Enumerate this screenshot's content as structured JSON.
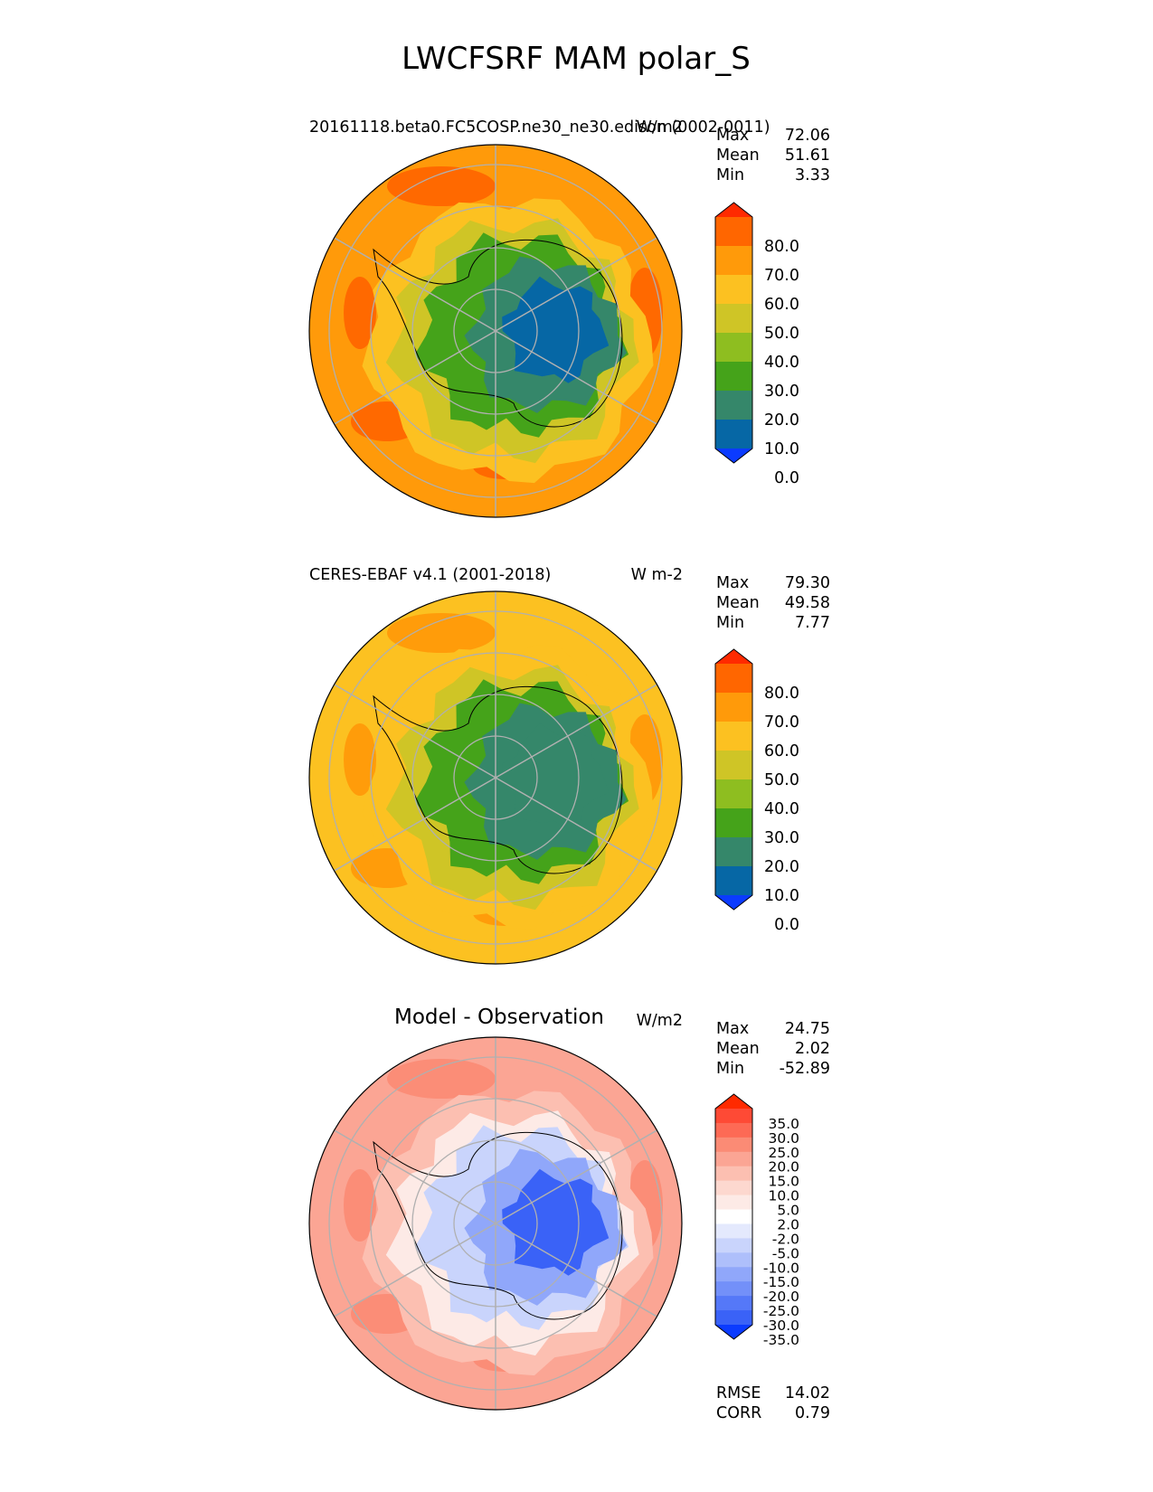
{
  "chart_data": {
    "type": "heatmap",
    "title": "LWCFSRF MAM polar_S",
    "projection": "south polar stereographic",
    "grid": true,
    "panels": [
      {
        "left_title": "20161118.beta0.FC5COSP.ne30_ne30.edison (0002-0011)",
        "right_title": "W/m2",
        "stats": [
          {
            "label": "Max",
            "value": "72.06"
          },
          {
            "label": "Mean",
            "value": "51.61"
          },
          {
            "label": "Min",
            "value": "3.33"
          }
        ],
        "colorbar": {
          "levels": [
            "80.0",
            "70.0",
            "60.0",
            "50.0",
            "40.0",
            "30.0",
            "20.0",
            "10.0",
            "0.0"
          ],
          "colors": [
            "#ff2a00",
            "#ff6600",
            "#ff9a0a",
            "#fcc121",
            "#cfc526",
            "#8ebe20",
            "#45a31a",
            "#35876a",
            "#0667a5",
            "#0b3bff"
          ]
        },
        "field": {
          "ocean": "#ff9a0a",
          "ice_ring": "#fcc121",
          "coastal_band": "#cfc526",
          "interior": "#45a31a",
          "plateau": "#35876a",
          "core": "#0667a5",
          "highs": "#ff6600"
        }
      },
      {
        "left_title": "CERES-EBAF v4.1 (2001-2018)",
        "right_title": "W m-2",
        "stats": [
          {
            "label": "Max",
            "value": "79.30"
          },
          {
            "label": "Mean",
            "value": "49.58"
          },
          {
            "label": "Min",
            "value": "7.77"
          }
        ],
        "colorbar": {
          "levels": [
            "80.0",
            "70.0",
            "60.0",
            "50.0",
            "40.0",
            "30.0",
            "20.0",
            "10.0",
            "0.0"
          ],
          "colors": [
            "#ff2a00",
            "#ff6600",
            "#ff9a0a",
            "#fcc121",
            "#cfc526",
            "#8ebe20",
            "#45a31a",
            "#35876a",
            "#0667a5",
            "#0b3bff"
          ]
        },
        "field": {
          "ocean": "#fcc121",
          "ice_ring": "#fcc121",
          "coastal_band": "#cfc526",
          "interior": "#45a31a",
          "plateau": "#35876a",
          "core": "#35876a",
          "highs": "#ff9a0a"
        }
      },
      {
        "left_title": "Model - Observation",
        "right_title": "W/m2",
        "stats": [
          {
            "label": "Max",
            "value": "24.75"
          },
          {
            "label": "Mean",
            "value": "2.02"
          },
          {
            "label": "Min",
            "value": "-52.89"
          }
        ],
        "extra_stats": [
          {
            "label": "RMSE",
            "value": "14.02"
          },
          {
            "label": "CORR",
            "value": "0.79"
          }
        ],
        "colorbar": {
          "levels": [
            "35.0",
            "30.0",
            "25.0",
            "20.0",
            "15.0",
            "10.0",
            "5.0",
            "2.0",
            "-2.0",
            "-5.0",
            "-10.0",
            "-15.0",
            "-20.0",
            "-25.0",
            "-30.0",
            "-35.0"
          ],
          "colors": [
            "#ff2a00",
            "#fe4a35",
            "#fd6a55",
            "#fb8b75",
            "#fba594",
            "#fcbfb1",
            "#fdd8cf",
            "#fdeae6",
            "#ffffff",
            "#e4e9fd",
            "#c9d4fc",
            "#aebffb",
            "#90a7fa",
            "#7390f9",
            "#5578f8",
            "#3a62f7",
            "#0b3bff"
          ]
        },
        "field": {
          "ocean": "#fba594",
          "ice_ring": "#fcbfb1",
          "coastal_band": "#fdeae6",
          "interior": "#c9d4fc",
          "plateau": "#90a7fa",
          "core": "#3a62f7",
          "highs": "#fb8b75"
        }
      }
    ]
  }
}
